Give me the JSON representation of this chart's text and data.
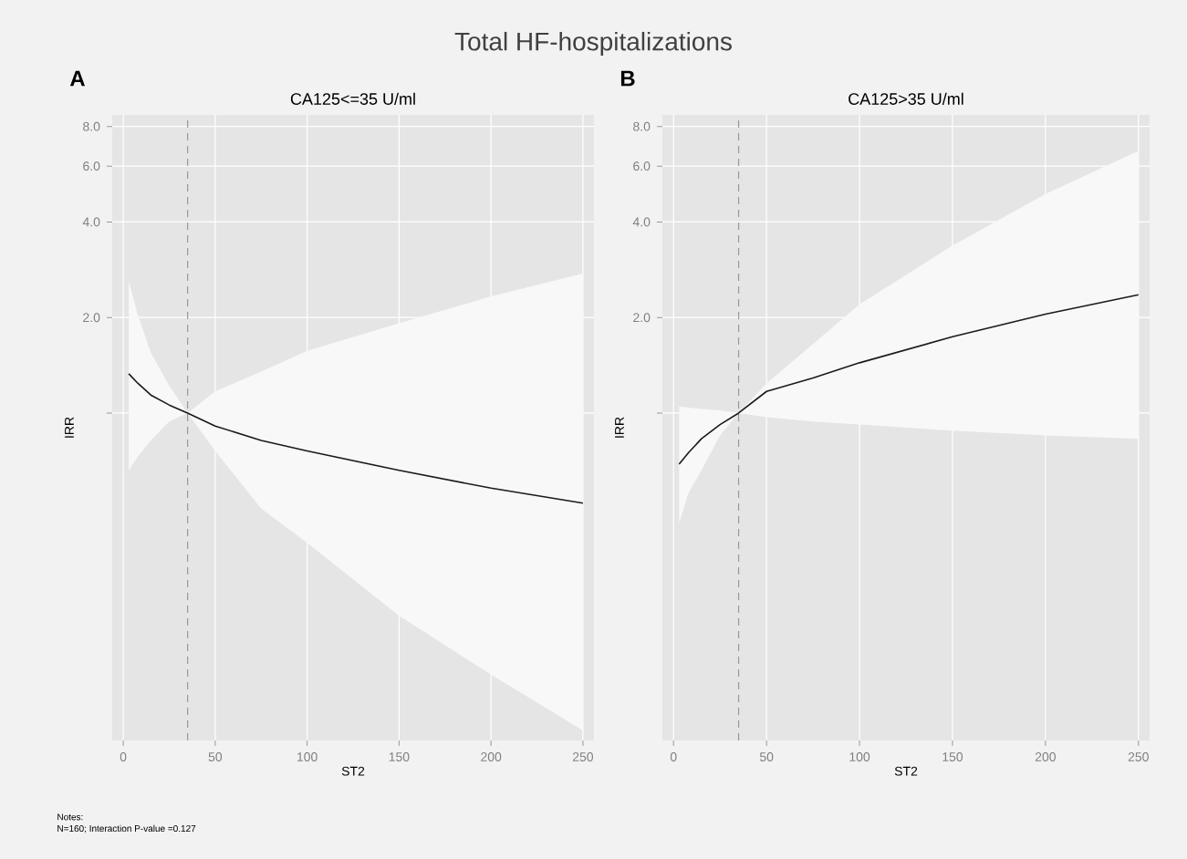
{
  "chart_data": [
    {
      "type": "line",
      "title": "Total HF-hospitalizations",
      "subtitle": "CA125<=35 U/ml",
      "xlabel": "ST2",
      "ylabel": "IRR",
      "log": true,
      "grid": true,
      "xlim": [
        -6,
        256
      ],
      "xticks": [
        0,
        50,
        100,
        150,
        200,
        250
      ],
      "ylim": [
        0.093,
        8.7
      ],
      "yticks": [
        {
          "value": 1,
          "label": null
        },
        {
          "value": 2,
          "label": "2.0"
        },
        {
          "value": 4,
          "label": "4.0"
        },
        {
          "value": 6,
          "label": "6.0"
        },
        {
          "value": 8,
          "label": "8.0"
        }
      ],
      "ref_lines": [
        {
          "axis": "x",
          "value": 35,
          "color": "#999999",
          "line_style": "dashed"
        }
      ],
      "annotations": [
        "A",
        "Notes:",
        "N=160; Interaction P-value =0.127"
      ],
      "series": [
        {
          "color": "#1a1a1a",
          "x": [
            3,
            8,
            15,
            25,
            35,
            50,
            75,
            100,
            150,
            200,
            250
          ],
          "values": [
            1.33,
            1.24,
            1.14,
            1.06,
            1.0,
            0.91,
            0.82,
            0.76,
            0.66,
            0.58,
            0.52
          ],
          "upper": [
            2.6,
            2.03,
            1.55,
            1.22,
            1.0,
            1.17,
            1.35,
            1.57,
            1.92,
            2.33,
            2.75
          ],
          "lower": [
            0.66,
            0.73,
            0.82,
            0.94,
            1.0,
            0.76,
            0.5,
            0.39,
            0.23,
            0.15,
            0.1
          ]
        }
      ]
    },
    {
      "type": "line",
      "subtitle": "CA125>35 U/ml",
      "xlabel": "ST2",
      "ylabel": "IRR",
      "log": true,
      "grid": true,
      "xlim": [
        -6,
        256
      ],
      "xticks": [
        0,
        50,
        100,
        150,
        200,
        250
      ],
      "ylim": [
        0.093,
        8.7
      ],
      "yticks": [
        {
          "value": 1,
          "label": null
        },
        {
          "value": 2,
          "label": "2.0"
        },
        {
          "value": 4,
          "label": "4.0"
        },
        {
          "value": 6,
          "label": "6.0"
        },
        {
          "value": 8,
          "label": "8.0"
        }
      ],
      "ref_lines": [
        {
          "axis": "x",
          "value": 35,
          "color": "#999999",
          "line_style": "dashed"
        }
      ],
      "annotations": [
        "B"
      ],
      "series": [
        {
          "color": "#1a1a1a",
          "x": [
            3,
            8,
            15,
            25,
            35,
            50,
            75,
            100,
            150,
            200,
            250
          ],
          "values": [
            0.69,
            0.75,
            0.83,
            0.92,
            1.0,
            1.17,
            1.29,
            1.44,
            1.74,
            2.05,
            2.36
          ],
          "upper": [
            1.05,
            1.04,
            1.03,
            1.02,
            1.0,
            1.24,
            1.65,
            2.2,
            3.37,
            4.9,
            6.7
          ],
          "lower": [
            0.45,
            0.56,
            0.66,
            0.85,
            1.0,
            0.97,
            0.94,
            0.92,
            0.88,
            0.85,
            0.83
          ]
        }
      ]
    }
  ]
}
